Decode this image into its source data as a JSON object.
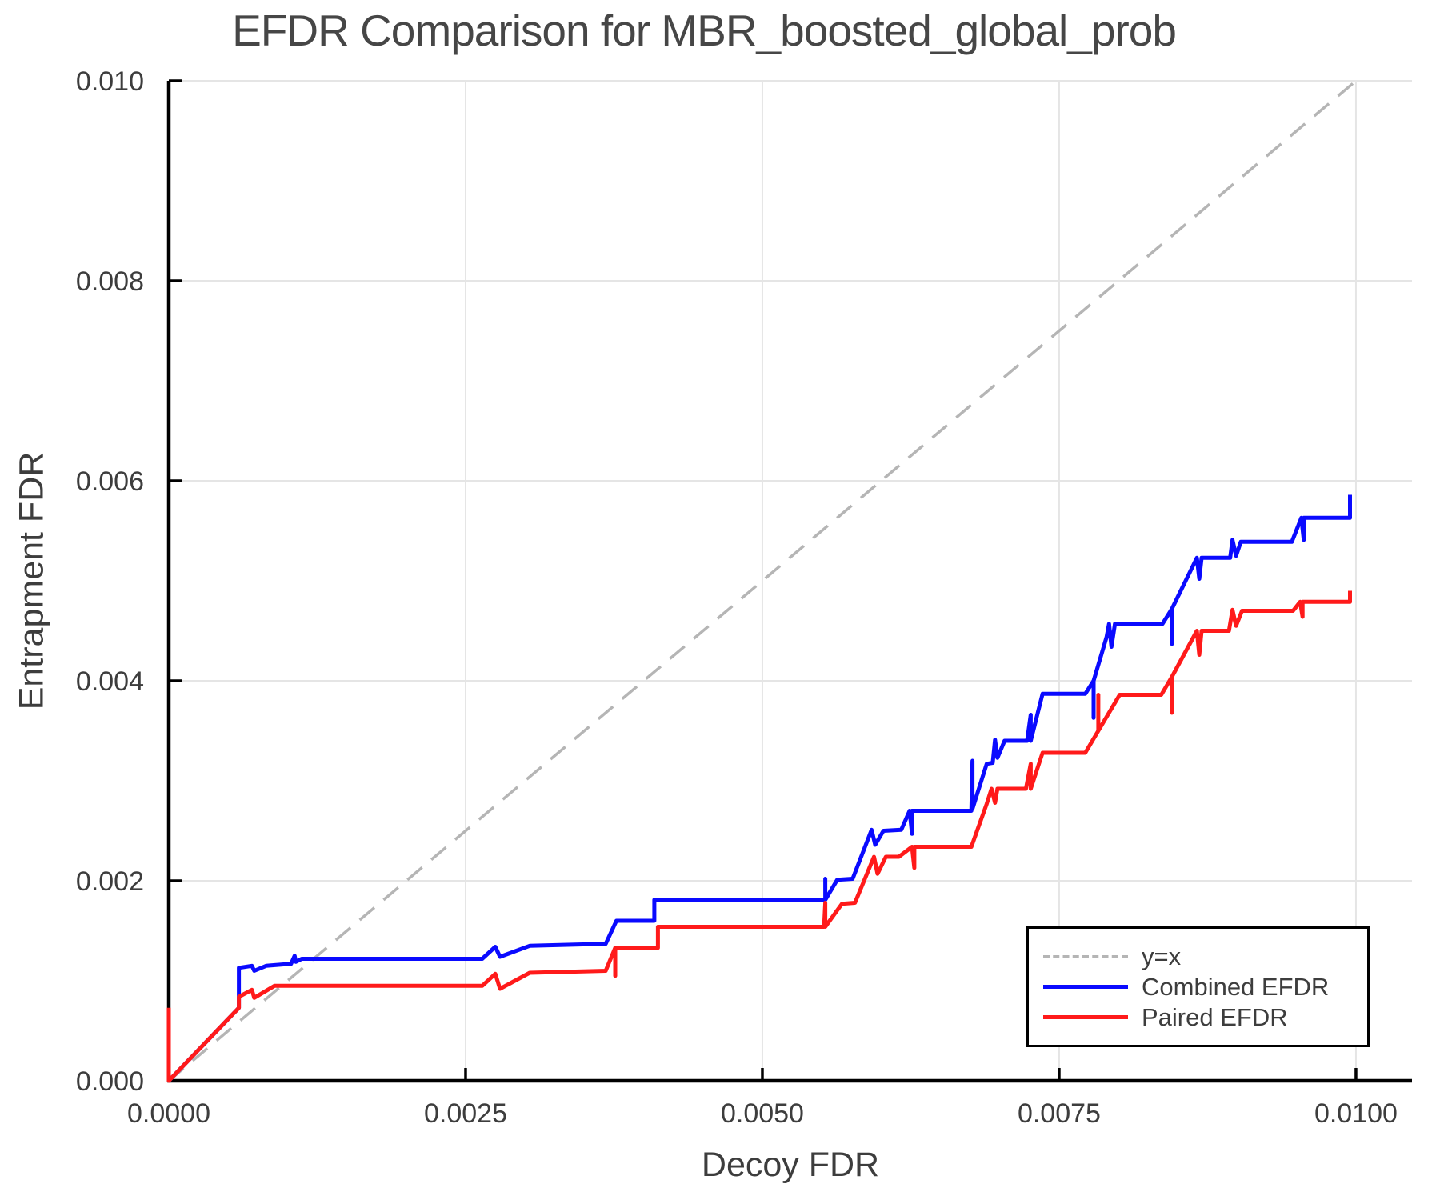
{
  "title": "EFDR Comparison for MBR_boosted_global_prob",
  "chart_data": {
    "type": "line",
    "title": "EFDR Comparison for MBR_boosted_global_prob",
    "xlabel": "Decoy FDR",
    "ylabel": "Entrapment FDR",
    "xlim": [
      0,
      0.010472
    ],
    "ylim": [
      0,
      0.01
    ],
    "grid": true,
    "legend_position": "lower right",
    "x_ticks": {
      "values": [
        0,
        0.0025,
        0.005,
        0.0075,
        0.01
      ],
      "labels": [
        "0.0000",
        "0.0025",
        "0.0050",
        "0.0075",
        "0.0100"
      ]
    },
    "y_ticks": {
      "values": [
        0,
        0.002,
        0.004,
        0.006,
        0.008,
        0.01
      ],
      "labels": [
        "0.000",
        "0.002",
        "0.004",
        "0.006",
        "0.008",
        "0.010"
      ]
    },
    "colors": {
      "grid": "#e5e5e5",
      "spine": "#000000",
      "tick_text": "#3d3d3d",
      "title_text": "#464646",
      "yx_line": "#b5b5b5",
      "combined": "#0a0aff",
      "paired": "#ff1a1a"
    },
    "series": [
      {
        "name": "y=x",
        "color": "#b5b5b5",
        "style": "dashed",
        "width": 3.5,
        "points": [
          [
            0,
            0
          ],
          [
            0.01,
            0.01
          ]
        ]
      },
      {
        "name": "Combined EFDR",
        "color": "#0a0aff",
        "style": "solid",
        "width": 5,
        "points": [
          [
            0,
            0
          ],
          [
            0.00059,
            0.00073
          ],
          [
            0.00059,
            0.00113
          ],
          [
            0.0007,
            0.00115
          ],
          [
            0.00072,
            0.0011
          ],
          [
            0.00082,
            0.00115
          ],
          [
            0.00103,
            0.00117
          ],
          [
            0.00106,
            0.00125
          ],
          [
            0.00107,
            0.00119
          ],
          [
            0.00112,
            0.00122
          ],
          [
            0.00264,
            0.00122
          ],
          [
            0.00275,
            0.00134
          ],
          [
            0.00279,
            0.00124
          ],
          [
            0.00304,
            0.00135
          ],
          [
            0.00368,
            0.00137
          ],
          [
            0.00377,
            0.0016
          ],
          [
            0.00409,
            0.0016
          ],
          [
            0.00409,
            0.00181
          ],
          [
            0.00553,
            0.00181
          ],
          [
            0.00553,
            0.00202
          ],
          [
            0.00553,
            0.00181
          ],
          [
            0.00563,
            0.00201
          ],
          [
            0.00576,
            0.00202
          ],
          [
            0.00592,
            0.00251
          ],
          [
            0.00595,
            0.00236
          ],
          [
            0.00602,
            0.0025
          ],
          [
            0.00617,
            0.00251
          ],
          [
            0.00624,
            0.0027
          ],
          [
            0.00626,
            0.00247
          ],
          [
            0.00626,
            0.0027
          ],
          [
            0.00676,
            0.0027
          ],
          [
            0.00677,
            0.0032
          ],
          [
            0.00677,
            0.00272
          ],
          [
            0.00689,
            0.00317
          ],
          [
            0.00694,
            0.00318
          ],
          [
            0.00696,
            0.00341
          ],
          [
            0.00698,
            0.00323
          ],
          [
            0.00704,
            0.0034
          ],
          [
            0.00723,
            0.0034
          ],
          [
            0.00726,
            0.00366
          ],
          [
            0.00726,
            0.0034
          ],
          [
            0.00736,
            0.00387
          ],
          [
            0.00772,
            0.00387
          ],
          [
            0.00779,
            0.004
          ],
          [
            0.00779,
            0.00363
          ],
          [
            0.00779,
            0.004
          ],
          [
            0.0079,
            0.00444
          ],
          [
            0.00792,
            0.00457
          ],
          [
            0.00794,
            0.00434
          ],
          [
            0.00797,
            0.00457
          ],
          [
            0.00837,
            0.00457
          ],
          [
            0.00845,
            0.00472
          ],
          [
            0.00845,
            0.00437
          ],
          [
            0.00845,
            0.00472
          ],
          [
            0.00866,
            0.00523
          ],
          [
            0.00868,
            0.00502
          ],
          [
            0.0087,
            0.00523
          ],
          [
            0.00894,
            0.00523
          ],
          [
            0.00896,
            0.00541
          ],
          [
            0.00899,
            0.00525
          ],
          [
            0.00903,
            0.00539
          ],
          [
            0.00946,
            0.00539
          ],
          [
            0.00954,
            0.00563
          ],
          [
            0.00956,
            0.00541
          ],
          [
            0.00956,
            0.00563
          ],
          [
            0.00995,
            0.00563
          ],
          [
            0.00995,
            0.00586
          ]
        ]
      },
      {
        "name": "Paired EFDR",
        "color": "#ff1a1a",
        "style": "solid",
        "width": 5,
        "points": [
          [
            0,
            0.00073
          ],
          [
            0,
            0
          ],
          [
            0.00059,
            0.00073
          ],
          [
            0.00059,
            0.00084
          ],
          [
            0.0007,
            0.00091
          ],
          [
            0.00072,
            0.00083
          ],
          [
            0.00089,
            0.00095
          ],
          [
            0.00264,
            0.00095
          ],
          [
            0.00275,
            0.00107
          ],
          [
            0.00279,
            0.00092
          ],
          [
            0.00304,
            0.00108
          ],
          [
            0.00368,
            0.0011
          ],
          [
            0.00376,
            0.00133
          ],
          [
            0.00376,
            0.00105
          ],
          [
            0.00376,
            0.00133
          ],
          [
            0.00412,
            0.00133
          ],
          [
            0.00412,
            0.00154
          ],
          [
            0.00552,
            0.00154
          ],
          [
            0.00553,
            0.00178
          ],
          [
            0.00553,
            0.00154
          ],
          [
            0.00567,
            0.00177
          ],
          [
            0.00578,
            0.00178
          ],
          [
            0.00594,
            0.00224
          ],
          [
            0.00597,
            0.00207
          ],
          [
            0.00604,
            0.00224
          ],
          [
            0.00615,
            0.00224
          ],
          [
            0.00626,
            0.00234
          ],
          [
            0.00628,
            0.00213
          ],
          [
            0.00628,
            0.00234
          ],
          [
            0.00676,
            0.00234
          ],
          [
            0.00689,
            0.00277
          ],
          [
            0.00693,
            0.00292
          ],
          [
            0.00696,
            0.00278
          ],
          [
            0.00698,
            0.00292
          ],
          [
            0.00722,
            0.00292
          ],
          [
            0.00726,
            0.00317
          ],
          [
            0.00726,
            0.00292
          ],
          [
            0.00736,
            0.00328
          ],
          [
            0.00772,
            0.00328
          ],
          [
            0.00783,
            0.0035
          ],
          [
            0.00783,
            0.00386
          ],
          [
            0.00783,
            0.0035
          ],
          [
            0.00801,
            0.00386
          ],
          [
            0.00836,
            0.00386
          ],
          [
            0.00845,
            0.00404
          ],
          [
            0.00845,
            0.00368
          ],
          [
            0.00845,
            0.00404
          ],
          [
            0.00866,
            0.0045
          ],
          [
            0.00868,
            0.00426
          ],
          [
            0.0087,
            0.0045
          ],
          [
            0.00893,
            0.0045
          ],
          [
            0.00896,
            0.00471
          ],
          [
            0.00899,
            0.00455
          ],
          [
            0.00904,
            0.0047
          ],
          [
            0.00947,
            0.0047
          ],
          [
            0.00953,
            0.00479
          ],
          [
            0.00955,
            0.00464
          ],
          [
            0.00955,
            0.00479
          ],
          [
            0.00995,
            0.00479
          ],
          [
            0.00995,
            0.0049
          ]
        ]
      }
    ]
  },
  "legend": {
    "items": [
      {
        "label": "y=x"
      },
      {
        "label": "Combined EFDR"
      },
      {
        "label": "Paired EFDR"
      }
    ]
  }
}
